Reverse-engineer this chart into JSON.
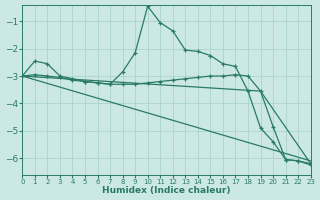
{
  "xlabel": "Humidex (Indice chaleur)",
  "bg_color": "#cce8e4",
  "grid_color": "#aad4cc",
  "line_color": "#2a7a6a",
  "xlim": [
    0,
    23
  ],
  "ylim": [
    -6.6,
    -0.4
  ],
  "yticks": [
    -6,
    -5,
    -4,
    -3,
    -2,
    -1
  ],
  "xticks": [
    0,
    1,
    2,
    3,
    4,
    5,
    6,
    7,
    8,
    9,
    10,
    11,
    12,
    13,
    14,
    15,
    16,
    17,
    18,
    19,
    20,
    21,
    22,
    23
  ],
  "line1_x": [
    0,
    1,
    2,
    3,
    4,
    5,
    6,
    7,
    8,
    9,
    10,
    11,
    12,
    13,
    14,
    15,
    16,
    17,
    18,
    19,
    20,
    21,
    22,
    23
  ],
  "line1_y": [
    -3.0,
    -2.45,
    -2.55,
    -3.0,
    -3.1,
    -3.2,
    -3.25,
    -3.3,
    -2.85,
    -2.15,
    -0.45,
    -1.05,
    -1.35,
    -2.05,
    -2.1,
    -2.25,
    -2.55,
    -2.65,
    -3.55,
    -4.9,
    -5.4,
    -6.05,
    -6.1,
    -6.25
  ],
  "line2_x": [
    0,
    1,
    2,
    3,
    4,
    5,
    6,
    7,
    8,
    9,
    10,
    11,
    12,
    13,
    14,
    15,
    16,
    17,
    18,
    19,
    20,
    21,
    22,
    23
  ],
  "line2_y": [
    -3.0,
    -2.95,
    -3.0,
    -3.05,
    -3.15,
    -3.2,
    -3.25,
    -3.3,
    -3.3,
    -3.3,
    -3.25,
    -3.2,
    -3.15,
    -3.1,
    -3.05,
    -3.0,
    -3.0,
    -2.95,
    -3.0,
    -3.55,
    -4.85,
    -6.05,
    -6.1,
    -6.2
  ],
  "line3_x": [
    0,
    23
  ],
  "line3_y": [
    -3.0,
    -6.1
  ],
  "line4_x": [
    0,
    19,
    23
  ],
  "line4_y": [
    -3.0,
    -3.55,
    -6.2
  ]
}
